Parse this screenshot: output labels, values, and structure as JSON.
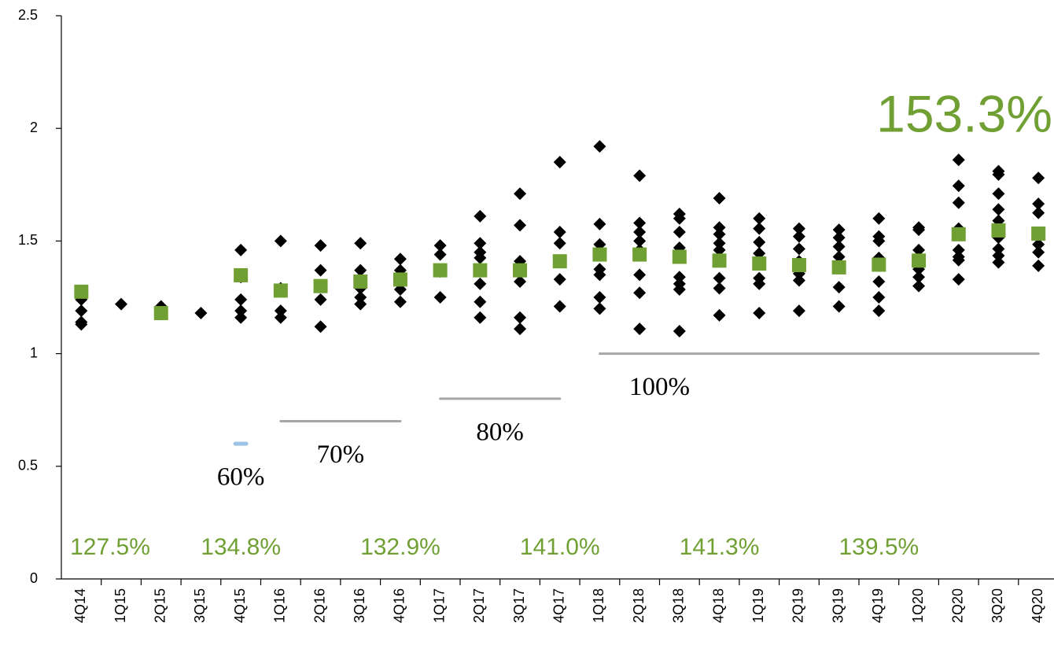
{
  "chart_data": {
    "type": "scatter",
    "categories": [
      "4Q14",
      "1Q15",
      "2Q15",
      "3Q15",
      "4Q15",
      "1Q16",
      "2Q16",
      "3Q16",
      "4Q16",
      "1Q17",
      "2Q17",
      "3Q17",
      "4Q17",
      "1Q18",
      "2Q18",
      "3Q18",
      "4Q18",
      "1Q19",
      "2Q19",
      "3Q19",
      "4Q19",
      "1Q20",
      "2Q20",
      "3Q20",
      "4Q20"
    ],
    "ylim": [
      0,
      2.5
    ],
    "yticks": [
      0,
      0.5,
      1,
      1.5,
      2,
      2.5
    ],
    "series": [
      {
        "marker": "diamond",
        "color": "#000000",
        "values": [
          [
            1.24,
            1.19,
            1.14,
            1.13
          ],
          [
            1.22
          ],
          [
            1.21,
            1.18
          ],
          [
            1.18
          ],
          [
            1.46,
            1.34,
            1.24,
            1.19,
            1.16
          ],
          [
            1.5,
            1.29,
            1.19,
            1.16
          ],
          [
            1.48,
            1.37,
            1.24,
            1.12
          ],
          [
            1.49,
            1.37,
            1.29,
            1.25,
            1.22
          ],
          [
            1.42,
            1.37,
            1.285,
            1.23
          ],
          [
            1.48,
            1.44,
            1.365,
            1.25
          ],
          [
            1.61,
            1.49,
            1.45,
            1.425,
            1.31,
            1.23,
            1.16
          ],
          [
            1.71,
            1.57,
            1.41,
            1.32,
            1.16,
            1.11
          ],
          [
            1.85,
            1.54,
            1.49,
            1.33,
            1.21
          ],
          [
            1.92,
            1.575,
            1.485,
            1.375,
            1.35,
            1.25,
            1.2
          ],
          [
            1.79,
            1.58,
            1.54,
            1.5,
            1.46,
            1.35,
            1.27,
            1.11
          ],
          [
            1.62,
            1.6,
            1.54,
            1.47,
            1.34,
            1.31,
            1.285,
            1.1
          ],
          [
            1.69,
            1.56,
            1.53,
            1.49,
            1.46,
            1.335,
            1.29,
            1.17
          ],
          [
            1.6,
            1.555,
            1.495,
            1.445,
            1.335,
            1.31,
            1.18
          ],
          [
            1.555,
            1.52,
            1.465,
            1.41,
            1.355,
            1.325,
            1.19
          ],
          [
            1.55,
            1.515,
            1.475,
            1.43,
            1.295,
            1.21
          ],
          [
            1.6,
            1.52,
            1.5,
            1.425,
            1.32,
            1.25,
            1.19
          ],
          [
            1.56,
            1.55,
            1.46,
            1.375,
            1.34,
            1.3
          ],
          [
            1.86,
            1.745,
            1.67,
            1.555,
            1.46,
            1.43,
            1.415,
            1.33
          ],
          [
            1.81,
            1.795,
            1.71,
            1.64,
            1.59,
            1.515,
            1.465,
            1.435,
            1.405
          ],
          [
            1.78,
            1.665,
            1.625,
            1.535,
            1.485,
            1.45,
            1.39
          ]
        ]
      },
      {
        "marker": "square",
        "color": "#70a033",
        "values": [
          1.275,
          null,
          1.18,
          null,
          1.348,
          1.28,
          1.3,
          1.32,
          1.329,
          1.37,
          1.37,
          1.37,
          1.41,
          1.44,
          1.44,
          1.43,
          1.413,
          1.4,
          1.393,
          1.383,
          1.395,
          1.413,
          1.53,
          1.547,
          1.533
        ],
        "value_labels": [
          "127.5%",
          null,
          null,
          null,
          "134.8%",
          null,
          null,
          null,
          "132.9%",
          null,
          null,
          null,
          "141.0%",
          null,
          null,
          null,
          "141.3%",
          null,
          null,
          null,
          "139.5%",
          null,
          null,
          null,
          "153.3%"
        ]
      },
      {
        "marker": "line",
        "name": "60%",
        "color": "#9dc3e6",
        "values": [
          null,
          null,
          null,
          null,
          0.6,
          null,
          null,
          null,
          null,
          null,
          null,
          null,
          null,
          null,
          null,
          null,
          null,
          null,
          null,
          null,
          null,
          null,
          null,
          null,
          null
        ]
      },
      {
        "marker": "line",
        "name": "70%",
        "color": "#a6a6a6",
        "values": [
          null,
          null,
          null,
          null,
          null,
          0.7,
          0.7,
          0.7,
          0.7,
          null,
          null,
          null,
          null,
          null,
          null,
          null,
          null,
          null,
          null,
          null,
          null,
          null,
          null,
          null,
          null
        ]
      },
      {
        "marker": "line",
        "name": "80%",
        "color": "#a6a6a6",
        "values": [
          null,
          null,
          null,
          null,
          null,
          null,
          null,
          null,
          null,
          0.8,
          0.8,
          0.8,
          0.8,
          null,
          null,
          null,
          null,
          null,
          null,
          null,
          null,
          null,
          null,
          null,
          null
        ]
      },
      {
        "marker": "line",
        "name": "100%",
        "color": "#a6a6a6",
        "values": [
          null,
          null,
          null,
          null,
          null,
          null,
          null,
          null,
          null,
          null,
          null,
          null,
          null,
          1,
          1,
          1,
          1,
          1,
          1,
          1,
          1,
          1,
          1,
          1,
          1
        ]
      }
    ]
  }
}
